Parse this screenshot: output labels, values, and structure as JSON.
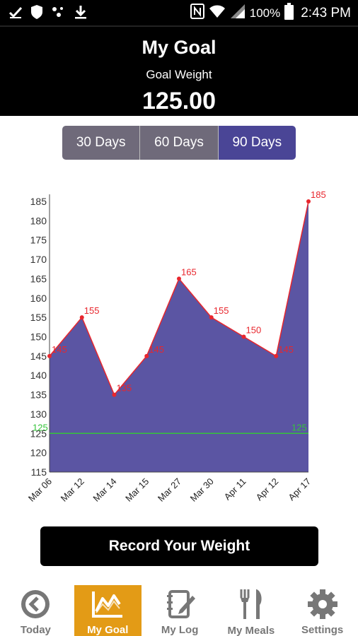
{
  "status_bar": {
    "battery": "100%",
    "time": "2:43 PM",
    "icons": [
      "check-icon",
      "shield-icon",
      "dots-icon",
      "download-icon",
      "nfc-icon",
      "wifi-icon",
      "signal-icon",
      "battery-icon"
    ]
  },
  "header": {
    "title": "My Goal",
    "subtitle": "Goal Weight",
    "value": "125.00"
  },
  "tabs": [
    {
      "label": "30 Days",
      "active": false
    },
    {
      "label": "60 Days",
      "active": false
    },
    {
      "label": "90 Days",
      "active": true
    }
  ],
  "chart_data": {
    "type": "area",
    "categories": [
      "Mar 06",
      "Mar 12",
      "Mar 14",
      "Mar 15",
      "Mar 27",
      "Mar 30",
      "Apr 11",
      "Apr 12",
      "Apr 17"
    ],
    "values": [
      145,
      155,
      135,
      145,
      165,
      155,
      150,
      145,
      185
    ],
    "goal_line": 125,
    "ylim": [
      115,
      185
    ],
    "yticks": [
      115,
      120,
      125,
      130,
      135,
      140,
      145,
      150,
      155,
      160,
      165,
      170,
      175,
      180,
      185
    ],
    "fill_color": "#5b55a3",
    "line_color": "#e8262d",
    "goal_color": "#35c43a",
    "grid": false
  },
  "record_button": {
    "label": "Record Your Weight"
  },
  "bottom_nav": [
    {
      "label": "Today",
      "icon": "back-circle-icon",
      "active": false
    },
    {
      "label": "My Goal",
      "icon": "chart-icon",
      "active": true
    },
    {
      "label": "My Log",
      "icon": "notebook-icon",
      "active": false
    },
    {
      "label": "My Meals",
      "icon": "fork-knife-icon",
      "active": false
    },
    {
      "label": "Settings",
      "icon": "gear-icon",
      "active": false
    }
  ],
  "colors": {
    "accent": "#e39b16",
    "tab_active": "#4a4596",
    "tab_inactive": "#6f6a7a"
  }
}
